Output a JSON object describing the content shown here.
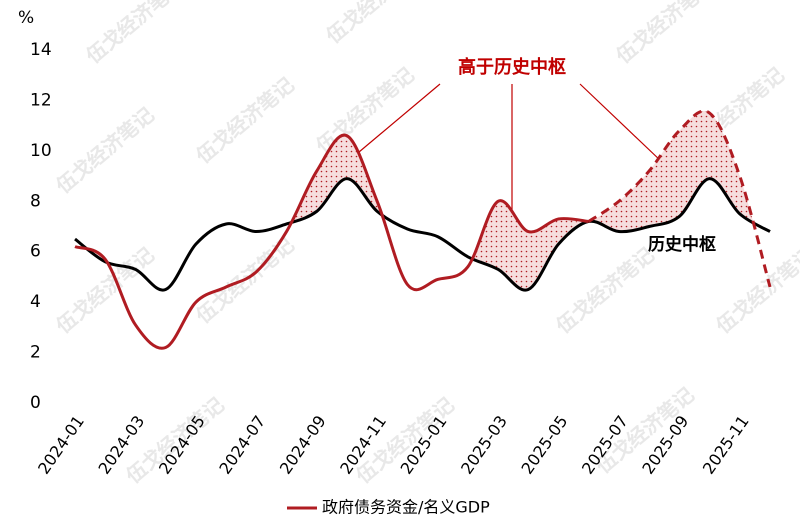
{
  "chart_data": {
    "type": "line",
    "y_unit": "%",
    "categories": [
      "2024-01",
      null,
      "2024-03",
      null,
      "2024-05",
      null,
      "2024-07",
      null,
      "2024-09",
      null,
      "2024-11",
      null,
      "2025-01",
      null,
      "2025-03",
      null,
      "2025-05",
      null,
      "2025-07",
      null,
      "2025-09",
      null,
      "2025-11",
      null
    ],
    "series": [
      {
        "name": "政府债务资金/名义GDP",
        "color": "#b01c22",
        "dash_start": 17,
        "values": [
          6.2,
          5.7,
          3.1,
          2.2,
          4.0,
          4.6,
          5.2,
          6.8,
          9.2,
          10.6,
          8.0,
          4.7,
          4.9,
          5.4,
          8.0,
          6.8,
          7.3,
          7.2,
          8.0,
          9.2,
          10.8,
          11.5,
          9.0,
          4.6
        ]
      },
      {
        "name": "历史中枢",
        "color": "#000000",
        "values": [
          6.5,
          5.6,
          5.3,
          4.5,
          6.3,
          7.1,
          6.8,
          7.1,
          7.6,
          8.9,
          7.6,
          6.9,
          6.6,
          5.8,
          5.3,
          4.5,
          6.3,
          7.2,
          6.8,
          7.0,
          7.4,
          8.9,
          7.5,
          6.8
        ]
      }
    ],
    "ylim": [
      0,
      14
    ],
    "yticks": [
      0,
      2,
      4,
      6,
      8,
      10,
      12,
      14
    ],
    "annotation": "高于历史中枢",
    "legend": "bottom",
    "watermark": "伍戈经济笔记"
  }
}
